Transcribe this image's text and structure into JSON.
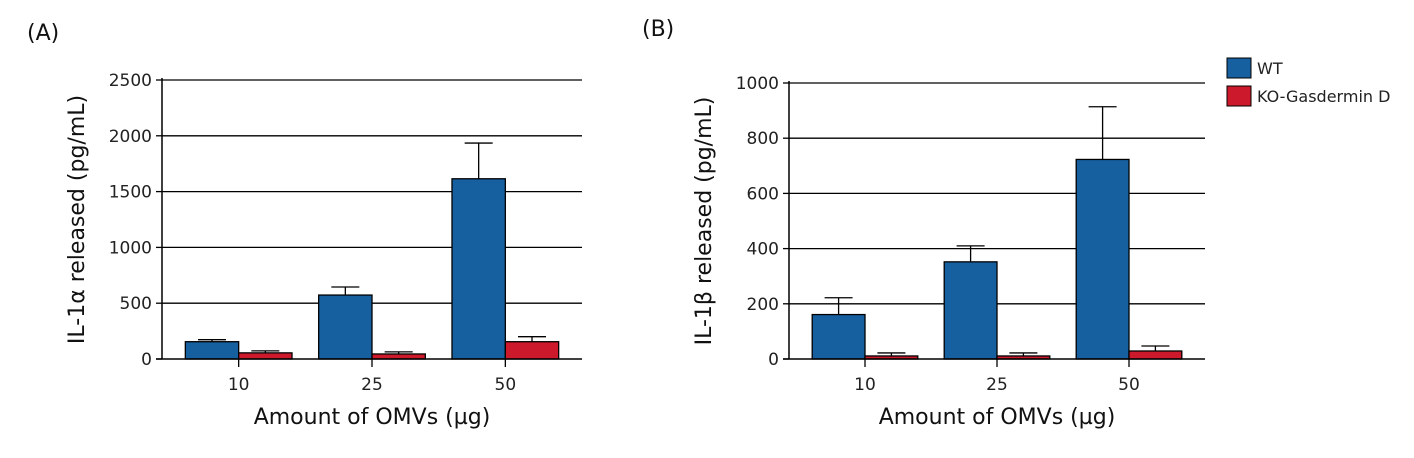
{
  "colors": {
    "WT": "#1760a0",
    "KO": "#cc1a2c"
  },
  "legend": [
    "WT",
    "KO-Gasdermin D"
  ],
  "chart_data": [
    {
      "type": "bar",
      "panel": "(A)",
      "categories": [
        "10",
        "25",
        "50"
      ],
      "xlabel": "Amount of OMVs (µg)",
      "ylabel": "IL-1α  released (pg/mL)",
      "ylim": [
        0,
        2500
      ],
      "yticks": [
        0,
        500,
        1000,
        1500,
        2000,
        2500
      ],
      "grid": true,
      "series": [
        {
          "name": "WT",
          "values": [
            155,
            573,
            1615
          ],
          "error": [
            18,
            72,
            320
          ]
        },
        {
          "name": "KO-Gasdermin D",
          "values": [
            55,
            45,
            155
          ],
          "error": [
            18,
            19,
            45
          ]
        }
      ]
    },
    {
      "type": "bar",
      "panel": "(B)",
      "categories": [
        "10",
        "25",
        "50"
      ],
      "xlabel": "Amount of OMVs (µg)",
      "ylabel": "IL-1β released (pg/mL)",
      "ylim": [
        0,
        1000
      ],
      "yticks": [
        0,
        200,
        400,
        600,
        800,
        1000
      ],
      "grid": true,
      "series": [
        {
          "name": "WT",
          "values": [
            161,
            352,
            723
          ],
          "error": [
            61,
            58,
            191
          ]
        },
        {
          "name": "KO-Gasdermin D",
          "values": [
            11,
            11,
            29
          ],
          "error": [
            11,
            11,
            18
          ]
        }
      ]
    }
  ]
}
